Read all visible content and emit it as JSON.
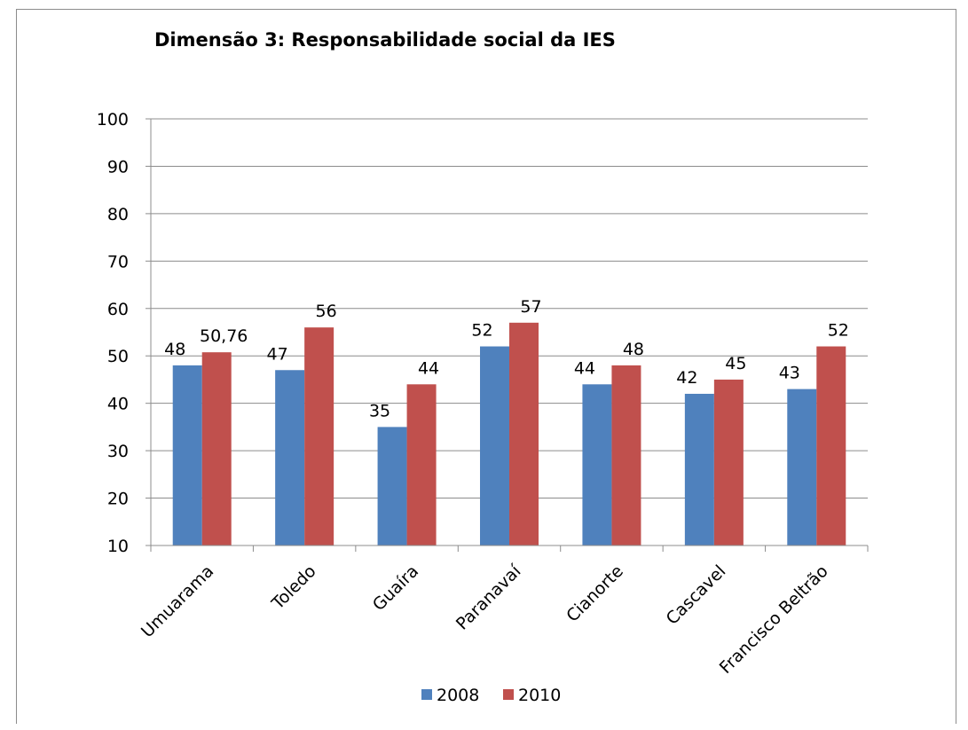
{
  "chart_data": {
    "type": "bar",
    "title": "Dimensão 3: Responsabilidade social da IES",
    "xlabel": "",
    "ylabel": "",
    "categories": [
      "Umuarama",
      "Toledo",
      "Guaíra",
      "Paranavaí",
      "Cianorte",
      "Cascavel",
      "Francisco Beltrão"
    ],
    "series": [
      {
        "name": "2008",
        "color": "#4f81bd",
        "values": [
          48,
          47,
          35,
          52,
          44,
          42,
          43
        ],
        "labels": [
          "48",
          "47",
          "35",
          "52",
          "44",
          "42",
          "43"
        ]
      },
      {
        "name": "2010",
        "color": "#c0504d",
        "values": [
          50.76,
          56,
          44,
          57,
          48,
          45,
          52
        ],
        "labels": [
          "50,76",
          "56",
          "44",
          "57",
          "48",
          "45",
          "52"
        ]
      }
    ],
    "ylim": [
      10,
      100
    ],
    "yticks": [
      10,
      20,
      30,
      40,
      50,
      60,
      70,
      80,
      90,
      100
    ],
    "grid": true,
    "legend_position": "bottom"
  }
}
